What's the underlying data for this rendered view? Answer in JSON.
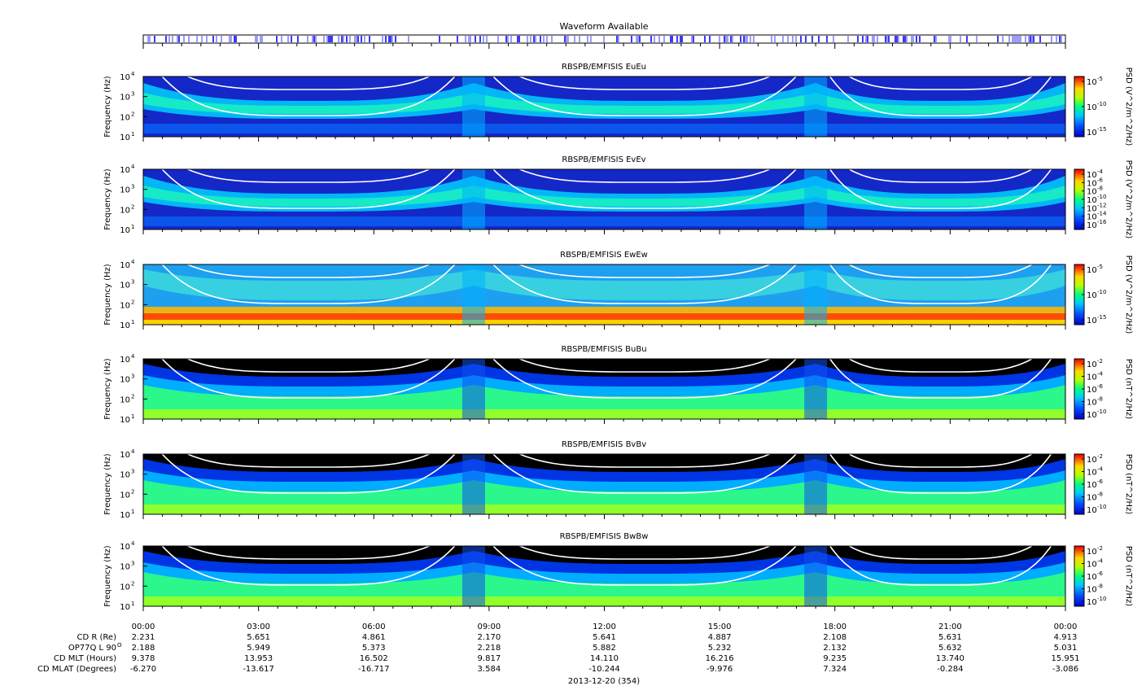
{
  "waveform": {
    "title": "Waveform Available",
    "bar_color": "#3a3aff"
  },
  "panels": [
    {
      "title": "RBSPB/EMFISIS  EuEu",
      "ylabel": "Frequency (Hz)",
      "cb_label": "PSD (V^2/m^2/Hz)",
      "cb_ticks": [
        "10",
        "10",
        "10"
      ],
      "cb_exps": [
        "-5",
        "-10",
        "-15"
      ],
      "style": "E",
      "bg": "#1428c8"
    },
    {
      "title": "RBSPB/EMFISIS  EvEv",
      "ylabel": "Frequency (Hz)",
      "cb_label": "PSD (V^2/m^2/Hz)",
      "cb_ticks": [
        "10",
        "10",
        "10",
        "10",
        "10",
        "10",
        "10"
      ],
      "cb_exps": [
        "-4",
        "-6",
        "-8",
        "-10",
        "-12",
        "-14",
        "-16"
      ],
      "style": "E",
      "bg": "#1428c8"
    },
    {
      "title": "RBSPB/EMFISIS  EwEw",
      "ylabel": "Frequency (Hz)",
      "cb_label": "PSD (V^2/m^2/Hz)",
      "cb_ticks": [
        "10",
        "10",
        "10"
      ],
      "cb_exps": [
        "-5",
        "-10",
        "-15"
      ],
      "style": "Ew",
      "bg": "#1ea0f0"
    },
    {
      "title": "RBSPB/EMFISIS  BuBu",
      "ylabel": "Frequency (Hz)",
      "cb_label": "PSD (nT^2/Hz)",
      "cb_ticks": [
        "10",
        "10",
        "10",
        "10",
        "10"
      ],
      "cb_exps": [
        "-2",
        "-4",
        "-6",
        "-8",
        "-10"
      ],
      "style": "B",
      "bg": "#000000"
    },
    {
      "title": "RBSPB/EMFISIS  BvBv",
      "ylabel": "Frequency (Hz)",
      "cb_label": "PSD (nT^2/Hz)",
      "cb_ticks": [
        "10",
        "10",
        "10",
        "10",
        "10"
      ],
      "cb_exps": [
        "-2",
        "-4",
        "-6",
        "-8",
        "-10"
      ],
      "style": "B",
      "bg": "#000000"
    },
    {
      "title": "RBSPB/EMFISIS  BwBw",
      "ylabel": "Frequency (Hz)",
      "cb_label": "PSD (nT^2/Hz)",
      "cb_ticks": [
        "10",
        "10",
        "10",
        "10",
        "10"
      ],
      "cb_exps": [
        "-2",
        "-4",
        "-6",
        "-8",
        "-10"
      ],
      "style": "B",
      "bg": "#000000"
    }
  ],
  "chart_data": {
    "type": "heatmap",
    "x_range_hours": [
      0,
      24
    ],
    "y_range_hz": [
      10,
      10000
    ],
    "y_scale": "log",
    "y_ticks": {
      "base": [
        "10",
        "10",
        "10",
        "10"
      ],
      "exps": [
        "1",
        "2",
        "3",
        "4"
      ]
    },
    "time_ticks": [
      "00:00",
      "03:00",
      "06:00",
      "09:00",
      "12:00",
      "15:00",
      "18:00",
      "21:00",
      "00:00"
    ],
    "ephemeris": [
      {
        "label": "CD R (Re)",
        "values": [
          "2.231",
          "5.651",
          "4.861",
          "2.170",
          "5.641",
          "4.887",
          "2.108",
          "5.631",
          "4.913"
        ]
      },
      {
        "label": "OP77Q L 90",
        "label_sup": "O",
        "values": [
          "2.188",
          "5.949",
          "5.373",
          "2.218",
          "5.882",
          "5.232",
          "2.132",
          "5.632",
          "5.031"
        ]
      },
      {
        "label": "CD MLT (Hours)",
        "values": [
          "9.378",
          "13.953",
          "16.502",
          "9.817",
          "14.110",
          "16.216",
          "9.235",
          "13.740",
          "15.951"
        ]
      },
      {
        "label": "CD MLAT (Degrees)",
        "values": [
          "-6.270",
          "-13.617",
          "-16.717",
          "3.584",
          "-10.244",
          "-9.976",
          "7.324",
          "-0.284",
          "-3.086"
        ]
      }
    ],
    "date_label": "2013-12-20 (354)",
    "perigee_hours": [
      8.6,
      17.5
    ],
    "overlay_lines": "white"
  }
}
